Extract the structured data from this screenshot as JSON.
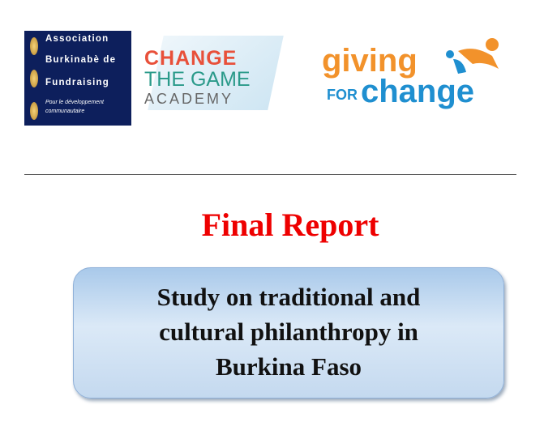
{
  "header": {
    "logos": [
      {
        "lines": [
          "Association",
          "Burkinabè de",
          "Fundraising"
        ],
        "tagline": [
          "Pour le développement",
          "communautaire"
        ]
      },
      {
        "lines": [
          "CHANGE",
          "THE GAME",
          "ACADEMY"
        ]
      },
      {
        "lines": [
          "giving",
          "FOR",
          "change"
        ]
      }
    ]
  },
  "title": "Final Report",
  "subtitle": {
    "lines": [
      "Study on traditional and",
      "cultural philanthropy in",
      "Burkina Faso"
    ]
  }
}
